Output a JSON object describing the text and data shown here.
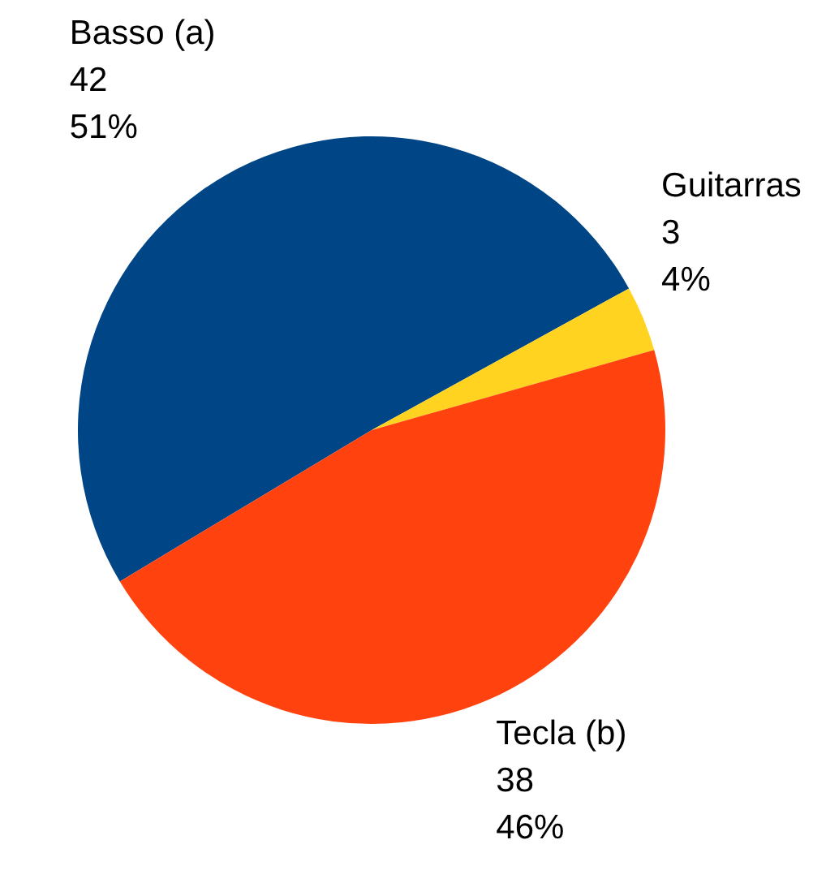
{
  "chart_data": {
    "type": "pie",
    "categories": [
      "Basso (a)",
      "Guitarras",
      "Tecla (b)"
    ],
    "values": [
      42,
      3,
      38
    ],
    "colors": [
      "#004586",
      "#ffd320",
      "#ff420e"
    ],
    "value_labels": [
      "42\n51%",
      "3\n4%",
      "38\n46%"
    ],
    "legend": false
  }
}
